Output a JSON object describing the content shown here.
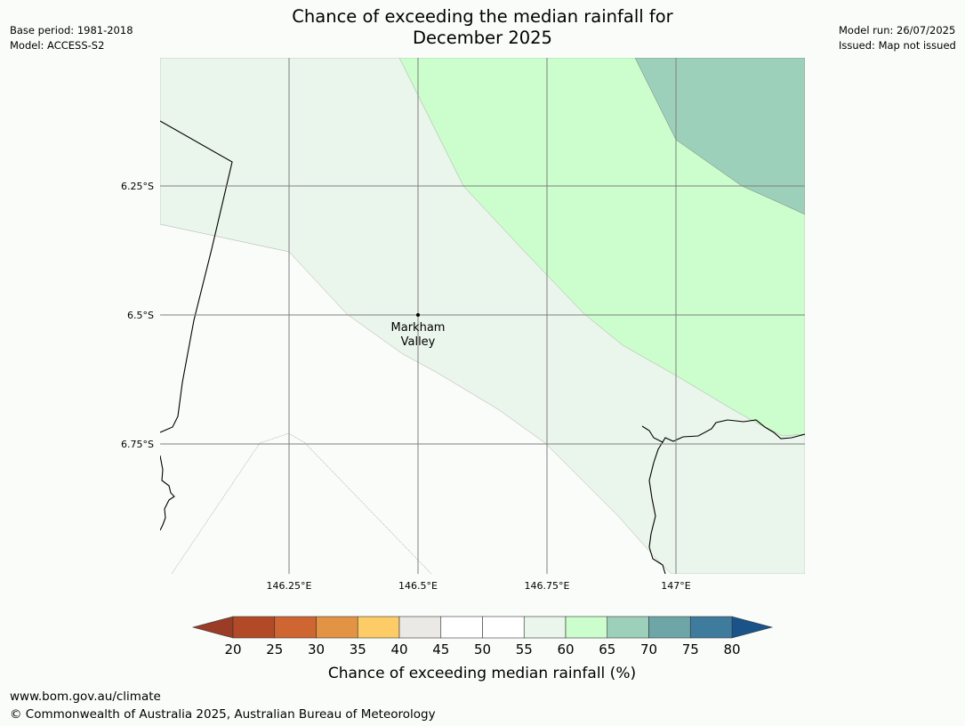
{
  "header": {
    "base_period": "Base period: 1981-2018",
    "model": "Model: ACCESS-S2",
    "title_line1": "Chance of exceeding the median rainfall for",
    "title_line2": "December 2025",
    "model_run": "Model run: 26/07/2025",
    "issued": "Issued: Map not issued"
  },
  "map": {
    "lat_labels": [
      "6.25°S",
      "6.5°S",
      "6.75°S"
    ],
    "lon_labels": [
      "146.25°E",
      "146.5°E",
      "146.75°E",
      "147°E"
    ],
    "place": {
      "name_line1": "Markham",
      "name_line2": "Valley"
    },
    "colors": {
      "land": "#f9fcf9",
      "class_55_60": "#eaf5eb",
      "class_60_65": "#ccfdcc",
      "class_65_70": "#9dd0ba",
      "gridline": "#808080"
    }
  },
  "colorbar": {
    "tick_labels": [
      "20",
      "25",
      "30",
      "35",
      "40",
      "45",
      "50",
      "55",
      "60",
      "65",
      "70",
      "75",
      "80"
    ],
    "segment_colors": [
      "#b24a27",
      "#cf6530",
      "#e29343",
      "#fdcc66",
      "#ebe9e5",
      "#ffffff",
      "#ffffff",
      "#eaf5eb",
      "#ccfdcc",
      "#9dd0ba",
      "#6ea6a8",
      "#3f7b9d"
    ],
    "under_color": "#9b3c27",
    "over_color": "#1a5389",
    "title": "Chance of exceeding median rainfall (%)"
  },
  "footer": {
    "url": "www.bom.gov.au/climate",
    "copyright": "© Commonwealth of Australia 2025, Australian Bureau of Meteorology"
  }
}
